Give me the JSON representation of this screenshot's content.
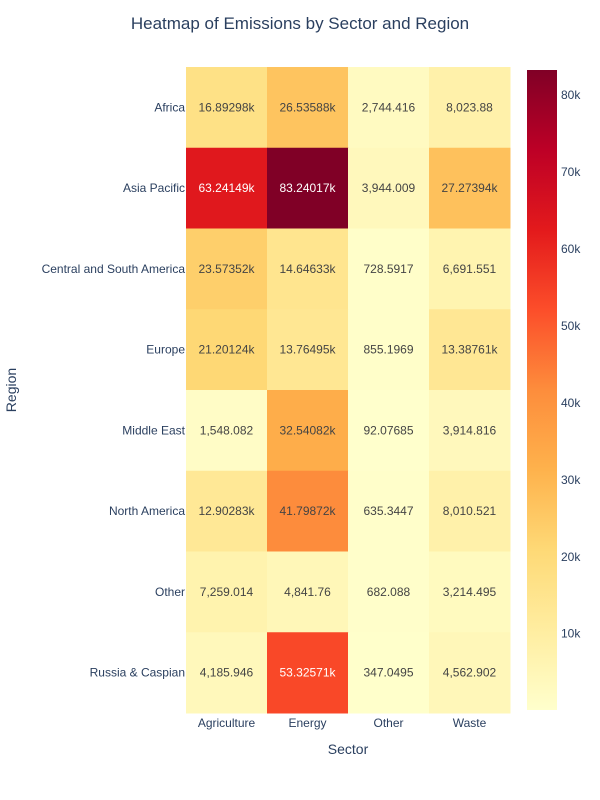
{
  "chart_data": {
    "type": "heatmap",
    "title": "Heatmap of Emissions by Sector and Region",
    "xlabel": "Sector",
    "ylabel": "Region",
    "x": [
      "Agriculture",
      "Energy",
      "Other",
      "Waste"
    ],
    "y": [
      "Africa",
      "Asia Pacific",
      "Central and South America",
      "Europe",
      "Middle East",
      "North America",
      "Other",
      "Russia & Caspian"
    ],
    "z": [
      [
        16892.98,
        26535.88,
        2744.416,
        8023.88
      ],
      [
        63241.49,
        83240.17,
        3944.009,
        27273.94
      ],
      [
        23573.52,
        14646.33,
        728.5917,
        6691.551
      ],
      [
        21201.24,
        13764.95,
        855.1969,
        13387.61
      ],
      [
        1548.082,
        32540.82,
        92.07685,
        3914.816
      ],
      [
        12902.83,
        41798.72,
        635.3447,
        8010.521
      ],
      [
        7259.014,
        4841.76,
        682.088,
        3214.495
      ],
      [
        4185.946,
        53325.71,
        347.0495,
        4562.902
      ]
    ],
    "text": [
      [
        "16.89298k",
        "26.53588k",
        "2,744.416",
        "8,023.88"
      ],
      [
        "63.24149k",
        "83.24017k",
        "3,944.009",
        "27.27394k"
      ],
      [
        "23.57352k",
        "14.64633k",
        "728.5917",
        "6,691.551"
      ],
      [
        "21.20124k",
        "13.76495k",
        "855.1969",
        "13.38761k"
      ],
      [
        "1,548.082",
        "32.54082k",
        "92.07685",
        "3,914.816"
      ],
      [
        "12.90283k",
        "41.79872k",
        "635.3447",
        "8,010.521"
      ],
      [
        "7,259.014",
        "4,841.76",
        "682.088",
        "3,214.495"
      ],
      [
        "4,185.946",
        "53.32571k",
        "347.0495",
        "4,562.902"
      ]
    ],
    "colorscale": "YlOrRd",
    "zmin": 92.07685,
    "zmax": 83240.17,
    "colorbar_ticks": [
      10000,
      20000,
      30000,
      40000,
      50000,
      60000,
      70000,
      80000
    ],
    "colorbar_ticklabels": [
      "10k",
      "20k",
      "30k",
      "40k",
      "50k",
      "60k",
      "70k",
      "80k"
    ],
    "colorbar": "right"
  }
}
